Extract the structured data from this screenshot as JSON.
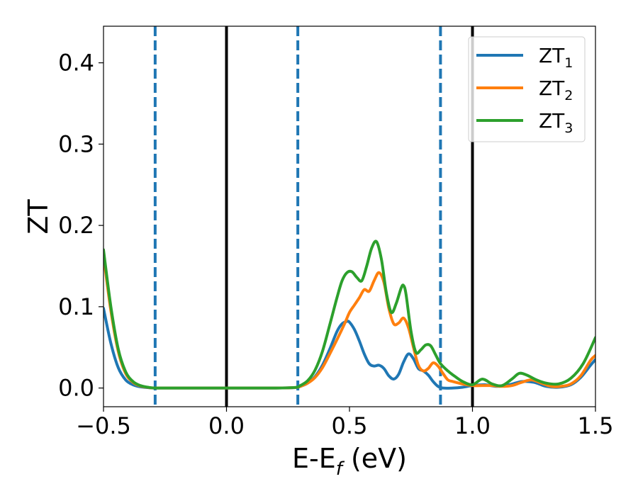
{
  "chart_data": {
    "type": "line",
    "xlabel": "E-E",
    "xlabel_sub": "f",
    "xlabel_unit": " (eV)",
    "ylabel": "ZT",
    "xlim": [
      -0.5,
      1.5
    ],
    "ylim": [
      -0.023,
      0.445
    ],
    "xticks": [
      -0.5,
      0.0,
      0.5,
      1.0,
      1.5
    ],
    "xtick_labels": [
      "−0.5",
      "0.0",
      "0.5",
      "1.0",
      "1.5"
    ],
    "yticks": [
      0.0,
      0.1,
      0.2,
      0.3,
      0.4
    ],
    "ytick_labels": [
      "0.0",
      "0.1",
      "0.2",
      "0.3",
      "0.4"
    ],
    "grid": false,
    "legend_position": "top-right",
    "vlines": [
      {
        "x": -0.29,
        "style": "dashed",
        "color": "#1f77b4"
      },
      {
        "x": 0.0,
        "style": "solid",
        "color": "#000000"
      },
      {
        "x": 0.29,
        "style": "dashed",
        "color": "#1f77b4"
      },
      {
        "x": 0.87,
        "style": "dashed",
        "color": "#1f77b4"
      },
      {
        "x": 1.0,
        "style": "solid",
        "color": "#000000"
      }
    ],
    "series": [
      {
        "name": "ZT",
        "name_sub": "1",
        "color": "#1f77b4",
        "x": [
          -0.5,
          -0.47,
          -0.44,
          -0.41,
          -0.38,
          -0.35,
          -0.32,
          -0.29,
          -0.2,
          0.0,
          0.2,
          0.28,
          0.3,
          0.33,
          0.36,
          0.39,
          0.42,
          0.45,
          0.47,
          0.49,
          0.5,
          0.52,
          0.54,
          0.56,
          0.58,
          0.6,
          0.62,
          0.64,
          0.66,
          0.68,
          0.7,
          0.72,
          0.74,
          0.76,
          0.78,
          0.8,
          0.82,
          0.84,
          0.86,
          0.88,
          0.92,
          0.96,
          1.0,
          1.05,
          1.1,
          1.15,
          1.2,
          1.25,
          1.3,
          1.35,
          1.4,
          1.44,
          1.48,
          1.5
        ],
        "y": [
          0.098,
          0.055,
          0.025,
          0.01,
          0.004,
          0.0015,
          0.0005,
          0.0,
          0.0,
          0.0,
          0.0,
          0.0005,
          0.002,
          0.006,
          0.014,
          0.028,
          0.048,
          0.07,
          0.079,
          0.082,
          0.081,
          0.072,
          0.058,
          0.042,
          0.03,
          0.027,
          0.028,
          0.024,
          0.015,
          0.011,
          0.017,
          0.032,
          0.042,
          0.036,
          0.024,
          0.021,
          0.016,
          0.008,
          0.002,
          0.0,
          0.0,
          0.001,
          0.003,
          0.004,
          0.002,
          0.004,
          0.008,
          0.007,
          0.002,
          0.001,
          0.004,
          0.013,
          0.028,
          0.035
        ]
      },
      {
        "name": "ZT",
        "name_sub": "2",
        "color": "#ff7f0e",
        "x": [
          -0.5,
          -0.47,
          -0.44,
          -0.41,
          -0.38,
          -0.35,
          -0.32,
          -0.29,
          -0.2,
          0.0,
          0.2,
          0.28,
          0.3,
          0.33,
          0.36,
          0.39,
          0.42,
          0.45,
          0.48,
          0.5,
          0.52,
          0.54,
          0.56,
          0.58,
          0.6,
          0.62,
          0.64,
          0.66,
          0.68,
          0.7,
          0.72,
          0.74,
          0.76,
          0.78,
          0.8,
          0.82,
          0.84,
          0.86,
          0.88,
          0.9,
          0.92,
          0.96,
          1.0,
          1.04,
          1.08,
          1.12,
          1.16,
          1.2,
          1.24,
          1.28,
          1.32,
          1.36,
          1.4,
          1.44,
          1.48,
          1.5
        ],
        "y": [
          0.163,
          0.095,
          0.045,
          0.018,
          0.007,
          0.0025,
          0.0008,
          0.0,
          0.0,
          0.0,
          0.0,
          0.0006,
          0.002,
          0.006,
          0.013,
          0.025,
          0.042,
          0.06,
          0.079,
          0.093,
          0.102,
          0.111,
          0.121,
          0.119,
          0.132,
          0.142,
          0.13,
          0.098,
          0.079,
          0.08,
          0.086,
          0.074,
          0.05,
          0.028,
          0.021,
          0.024,
          0.031,
          0.027,
          0.018,
          0.01,
          0.008,
          0.005,
          0.003,
          0.003,
          0.003,
          0.002,
          0.003,
          0.007,
          0.01,
          0.006,
          0.002,
          0.002,
          0.005,
          0.015,
          0.034,
          0.04
        ]
      },
      {
        "name": "ZT",
        "name_sub": "3",
        "color": "#2ca02c",
        "x": [
          -0.5,
          -0.47,
          -0.44,
          -0.41,
          -0.38,
          -0.35,
          -0.32,
          -0.29,
          -0.2,
          0.0,
          0.2,
          0.28,
          0.3,
          0.33,
          0.36,
          0.39,
          0.42,
          0.45,
          0.47,
          0.49,
          0.51,
          0.53,
          0.55,
          0.57,
          0.59,
          0.61,
          0.63,
          0.65,
          0.67,
          0.69,
          0.71,
          0.72,
          0.73,
          0.75,
          0.77,
          0.79,
          0.81,
          0.83,
          0.85,
          0.87,
          0.9,
          0.93,
          0.96,
          1.0,
          1.04,
          1.08,
          1.12,
          1.16,
          1.19,
          1.22,
          1.26,
          1.3,
          1.35,
          1.4,
          1.45,
          1.5
        ],
        "y": [
          0.17,
          0.1,
          0.048,
          0.02,
          0.008,
          0.003,
          0.001,
          0.0,
          0.0,
          0.0,
          0.0,
          0.0007,
          0.003,
          0.009,
          0.022,
          0.045,
          0.078,
          0.112,
          0.132,
          0.142,
          0.143,
          0.136,
          0.132,
          0.15,
          0.172,
          0.18,
          0.158,
          0.117,
          0.093,
          0.104,
          0.123,
          0.126,
          0.115,
          0.07,
          0.044,
          0.047,
          0.053,
          0.052,
          0.041,
          0.03,
          0.021,
          0.014,
          0.008,
          0.004,
          0.011,
          0.005,
          0.003,
          0.011,
          0.018,
          0.016,
          0.01,
          0.006,
          0.005,
          0.012,
          0.03,
          0.062
        ]
      }
    ]
  }
}
